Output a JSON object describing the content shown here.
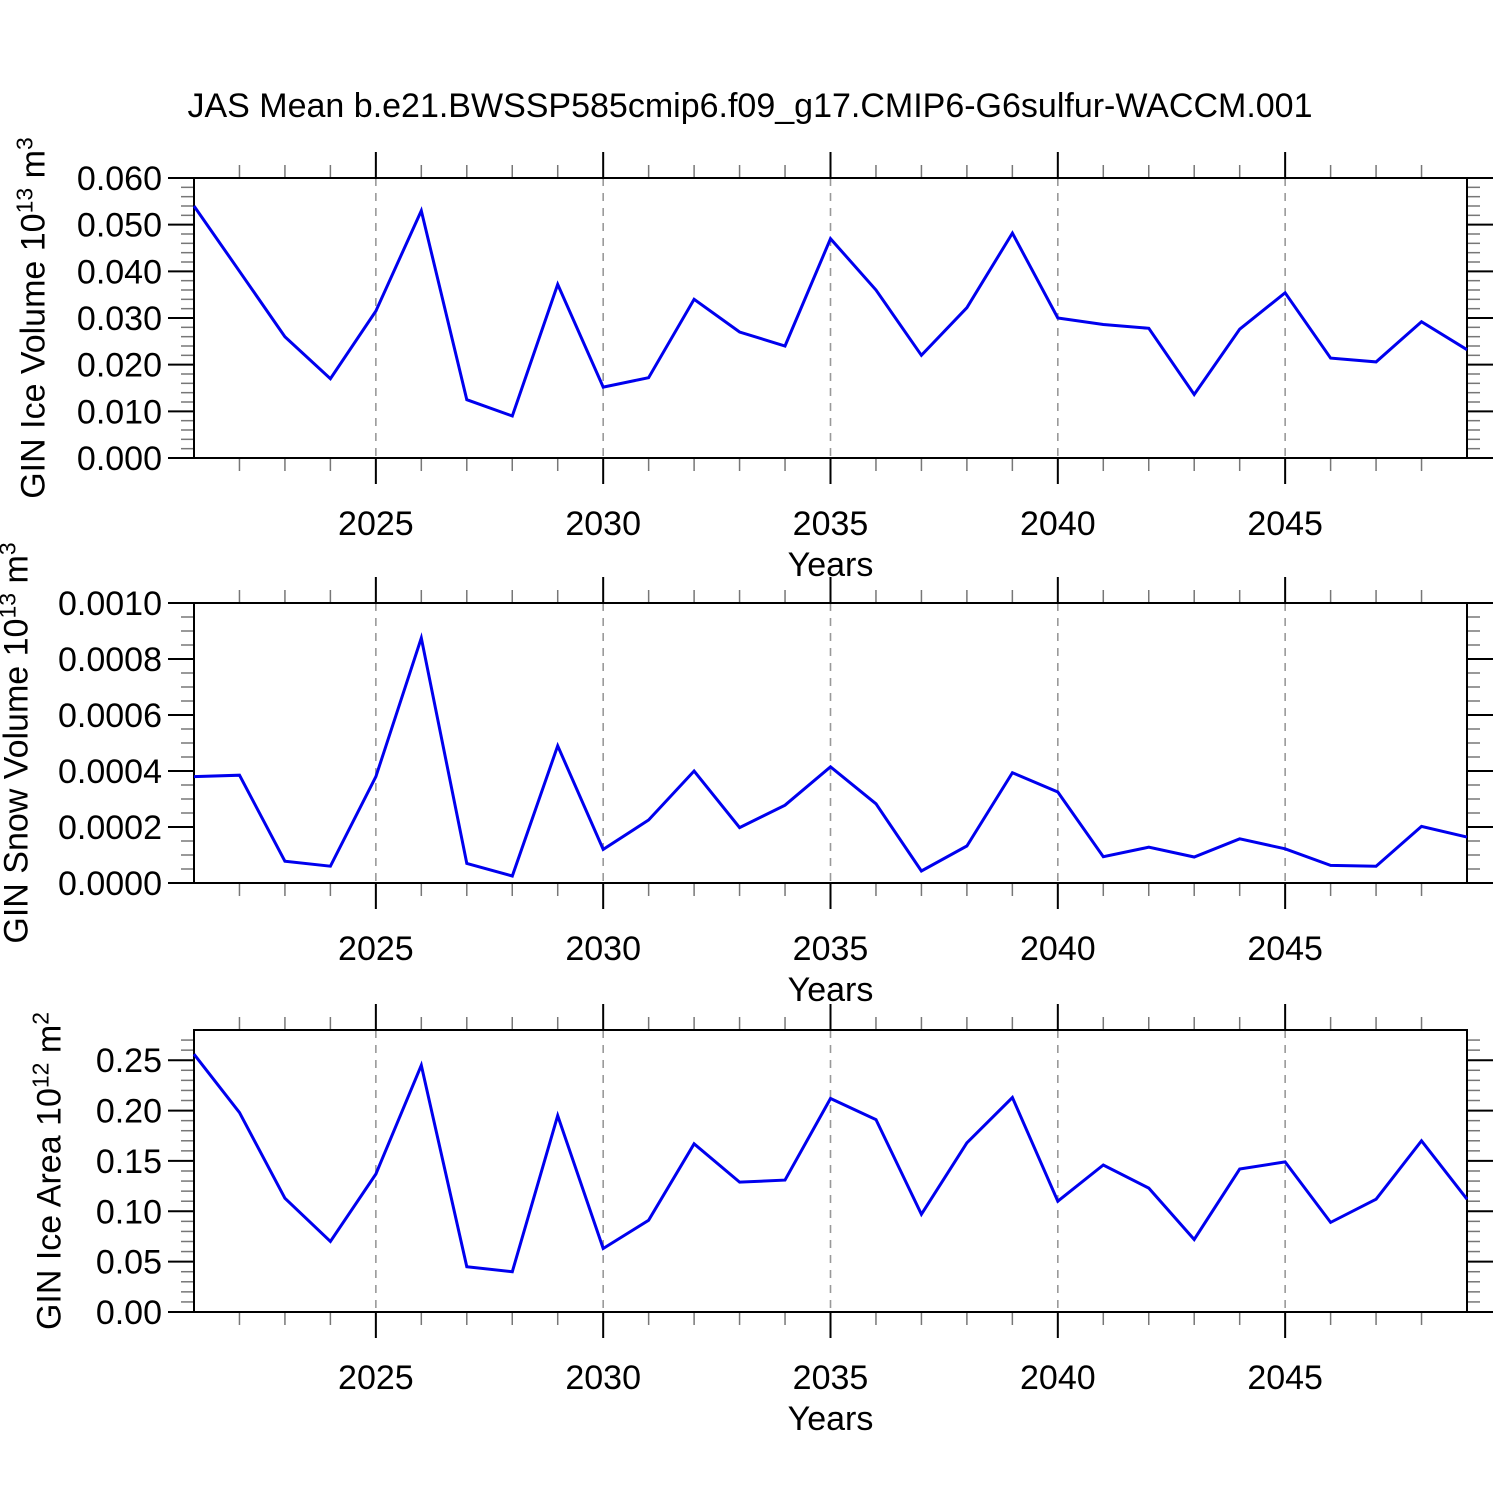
{
  "page": {
    "title": "JAS Mean b.e21.BWSSP585cmip6.f09_g17.CMIP6-G6sulfur-WACCM.001"
  },
  "colors": {
    "line": "#0000ee",
    "grid": "#999999",
    "minor_tick": "#777777",
    "axis": "#000000"
  },
  "chart_data": [
    {
      "type": "line",
      "name": "gin-ice-volume",
      "ylabel": {
        "base1": "GIN Ice Volume 10",
        "sup1": "13",
        "base2": " m",
        "sup2": "3"
      },
      "xlabel": "Years",
      "xlim": [
        2021,
        2049
      ],
      "ylim": [
        0,
        0.06
      ],
      "grid": {
        "style": "dashed",
        "at": "x-major"
      },
      "yticks": {
        "major": 0.01,
        "minor": 0.002,
        "labels": [
          "0.000",
          "0.010",
          "0.020",
          "0.030",
          "0.040",
          "0.050",
          "0.060"
        ]
      },
      "xticks": {
        "values": [
          2025,
          2030,
          2035,
          2040,
          2045
        ],
        "labels": [
          "2025",
          "2030",
          "2035",
          "2040",
          "2045"
        ]
      },
      "x": [
        2021,
        2022,
        2023,
        2024,
        2025,
        2026,
        2027,
        2028,
        2029,
        2030,
        2031,
        2032,
        2033,
        2034,
        2035,
        2036,
        2037,
        2038,
        2039,
        2040,
        2041,
        2042,
        2043,
        2044,
        2045,
        2046,
        2047,
        2048,
        2049
      ],
      "values": [
        0.054,
        0.04,
        0.026,
        0.017,
        0.0315,
        0.053,
        0.0125,
        0.009,
        0.0372,
        0.0152,
        0.0172,
        0.034,
        0.027,
        0.024,
        0.047,
        0.036,
        0.022,
        0.0322,
        0.0482,
        0.03,
        0.0286,
        0.0278,
        0.0136,
        0.0276,
        0.0354,
        0.0214,
        0.0206,
        0.0292,
        0.0232
      ]
    },
    {
      "type": "line",
      "name": "gin-snow-volume",
      "ylabel": {
        "base1": "GIN Snow Volume 10",
        "sup1": "13",
        "base2": " m",
        "sup2": "3"
      },
      "xlabel": "Years",
      "xlim": [
        2021,
        2049
      ],
      "ylim": [
        0,
        0.001
      ],
      "grid": {
        "style": "dashed",
        "at": "x-major"
      },
      "yticks": {
        "major": 0.0002,
        "minor": 5e-05,
        "labels": [
          "0.0000",
          "0.0002",
          "0.0004",
          "0.0006",
          "0.0008",
          "0.0010"
        ]
      },
      "xticks": {
        "values": [
          2025,
          2030,
          2035,
          2040,
          2045
        ],
        "labels": [
          "2025",
          "2030",
          "2035",
          "2040",
          "2045"
        ]
      },
      "x": [
        2021,
        2022,
        2023,
        2024,
        2025,
        2026,
        2027,
        2028,
        2029,
        2030,
        2031,
        2032,
        2033,
        2034,
        2035,
        2036,
        2037,
        2038,
        2039,
        2040,
        2041,
        2042,
        2043,
        2044,
        2045,
        2046,
        2047,
        2048,
        2049
      ],
      "values": [
        0.00038,
        0.000385,
        7.8e-05,
        6e-05,
        0.00038,
        0.000875,
        7e-05,
        2.5e-05,
        0.00049,
        0.00012,
        0.000225,
        0.0004,
        0.000198,
        0.000278,
        0.000415,
        0.000283,
        4.3e-05,
        0.000132,
        0.000394,
        0.000325,
        9.4e-05,
        0.000128,
        9.3e-05,
        0.000158,
        0.000122,
        6.3e-05,
        6e-05,
        0.000202,
        0.000164
      ]
    },
    {
      "type": "line",
      "name": "gin-ice-area",
      "ylabel": {
        "base1": "GIN Ice Area 10",
        "sup1": "12",
        "base2": " m",
        "sup2": "2"
      },
      "xlabel": "Years",
      "xlim": [
        2021,
        2049
      ],
      "ylim": [
        0,
        0.28
      ],
      "grid": {
        "style": "dashed",
        "at": "x-major"
      },
      "yticks": {
        "major": 0.05,
        "minor": 0.01,
        "labels": [
          "0.00",
          "0.05",
          "0.10",
          "0.15",
          "0.20",
          "0.25"
        ]
      },
      "xticks": {
        "values": [
          2025,
          2030,
          2035,
          2040,
          2045
        ],
        "labels": [
          "2025",
          "2030",
          "2035",
          "2040",
          "2045"
        ]
      },
      "x": [
        2021,
        2022,
        2023,
        2024,
        2025,
        2026,
        2027,
        2028,
        2029,
        2030,
        2031,
        2032,
        2033,
        2034,
        2035,
        2036,
        2037,
        2038,
        2039,
        2040,
        2041,
        2042,
        2043,
        2044,
        2045,
        2046,
        2047,
        2048,
        2049
      ],
      "values": [
        0.256,
        0.198,
        0.113,
        0.07,
        0.137,
        0.245,
        0.045,
        0.04,
        0.195,
        0.063,
        0.091,
        0.167,
        0.129,
        0.131,
        0.212,
        0.191,
        0.097,
        0.168,
        0.213,
        0.11,
        0.146,
        0.123,
        0.072,
        0.142,
        0.149,
        0.089,
        0.112,
        0.17,
        0.112
      ]
    }
  ]
}
